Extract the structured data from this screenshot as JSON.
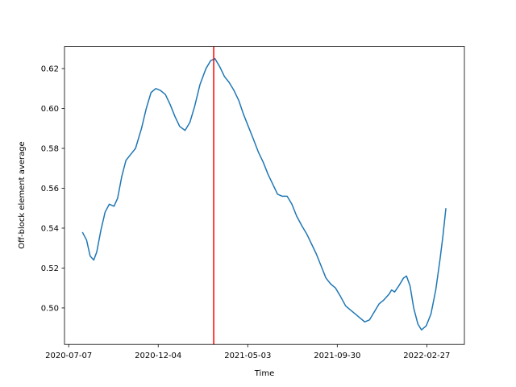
{
  "chart_data": {
    "type": "line",
    "xlabel": "Time",
    "ylabel": "Off-block element average",
    "x": [
      "2020-07-30",
      "2020-08-06",
      "2020-08-12",
      "2020-08-18",
      "2020-08-23",
      "2020-08-30",
      "2020-09-06",
      "2020-09-13",
      "2020-09-21",
      "2020-09-27",
      "2020-10-04",
      "2020-10-11",
      "2020-10-19",
      "2020-10-27",
      "2020-11-06",
      "2020-11-14",
      "2020-11-22",
      "2020-11-30",
      "2020-12-08",
      "2020-12-16",
      "2020-12-24",
      "2021-01-01",
      "2021-01-09",
      "2021-01-18",
      "2021-01-26",
      "2021-02-03",
      "2021-02-12",
      "2021-02-22",
      "2021-03-02",
      "2021-03-09",
      "2021-03-17",
      "2021-03-25",
      "2021-04-02",
      "2021-04-10",
      "2021-04-18",
      "2021-04-26",
      "2021-05-04",
      "2021-05-12",
      "2021-05-21",
      "2021-05-29",
      "2021-06-06",
      "2021-06-14",
      "2021-06-22",
      "2021-06-30",
      "2021-07-08",
      "2021-07-16",
      "2021-07-24",
      "2021-08-02",
      "2021-08-10",
      "2021-08-18",
      "2021-08-26",
      "2021-09-03",
      "2021-09-11",
      "2021-09-19",
      "2021-09-27",
      "2021-10-05",
      "2021-10-14",
      "2021-10-22",
      "2021-10-30",
      "2021-11-07",
      "2021-11-15",
      "2021-11-23",
      "2021-12-01",
      "2021-12-09",
      "2021-12-17",
      "2021-12-26",
      "2021-12-30",
      "2022-01-04",
      "2022-01-11",
      "2022-01-19",
      "2022-01-24",
      "2022-01-30",
      "2022-02-05",
      "2022-02-12",
      "2022-02-18",
      "2022-02-26",
      "2022-03-06",
      "2022-03-14",
      "2022-03-21",
      "2022-03-26",
      "2022-03-31"
    ],
    "values": [
      0.538,
      0.534,
      0.526,
      0.524,
      0.528,
      0.539,
      0.548,
      0.552,
      0.551,
      0.555,
      0.566,
      0.574,
      0.577,
      0.58,
      0.59,
      0.6,
      0.608,
      0.61,
      0.609,
      0.607,
      0.602,
      0.596,
      0.591,
      0.589,
      0.593,
      0.601,
      0.612,
      0.62,
      0.624,
      0.625,
      0.621,
      0.616,
      0.613,
      0.609,
      0.604,
      0.597,
      0.591,
      0.585,
      0.578,
      0.573,
      0.567,
      0.562,
      0.557,
      0.556,
      0.556,
      0.552,
      0.546,
      0.541,
      0.537,
      0.532,
      0.527,
      0.521,
      0.515,
      0.512,
      0.51,
      0.506,
      0.501,
      0.499,
      0.497,
      0.495,
      0.493,
      0.494,
      0.498,
      0.502,
      0.504,
      0.507,
      0.509,
      0.508,
      0.511,
      0.515,
      0.516,
      0.511,
      0.5,
      0.492,
      0.489,
      0.491,
      0.497,
      0.509,
      0.524,
      0.536,
      0.55
    ],
    "color": "#1f77b4",
    "vline": {
      "x": "2021-03-07",
      "color": "#ff0000"
    },
    "xlim": [
      "2020-06-30",
      "2022-05-01"
    ],
    "xticks": [
      "2020-07-07",
      "2020-12-04",
      "2021-05-03",
      "2021-09-30",
      "2022-02-27"
    ],
    "ylim": [
      0.4817,
      0.6311
    ],
    "yticks": [
      {
        "value": 0.5,
        "label": "0.50"
      },
      0.52,
      0.54,
      0.56,
      0.58,
      {
        "value": 0.6,
        "label": "0.60"
      },
      0.62
    ]
  }
}
